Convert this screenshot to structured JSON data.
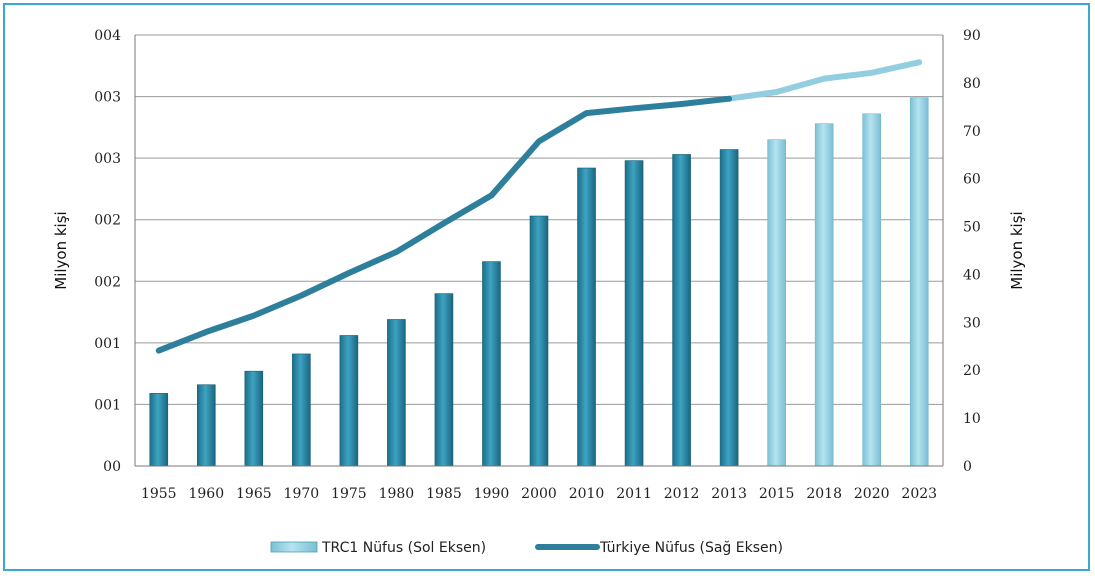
{
  "chart_data": {
    "type": "bar",
    "categories": [
      "1955",
      "1960",
      "1965",
      "1970",
      "1975",
      "1980",
      "1985",
      "1990",
      "2000",
      "2010",
      "2011",
      "2012",
      "2013",
      "2015",
      "2018",
      "2020",
      "2023"
    ],
    "left_axis": {
      "label": "Milyon kişi",
      "ticks": [
        "00",
        "001",
        "001",
        "002",
        "002",
        "003",
        "003",
        "004"
      ],
      "ylim": [
        0,
        3.5
      ]
    },
    "right_axis": {
      "label": "Milyon kişi",
      "ticks": [
        "0",
        "10",
        "20",
        "30",
        "40",
        "50",
        "60",
        "70",
        "80",
        "90"
      ],
      "ylim": [
        0,
        90
      ]
    },
    "series": [
      {
        "name": "TRC1 Nüfus (Sol Eksen)",
        "kind": "bar",
        "axis": "left",
        "values": [
          0.59,
          0.66,
          0.77,
          0.91,
          1.06,
          1.19,
          1.4,
          1.66,
          2.03,
          2.42,
          2.48,
          2.53,
          2.57,
          2.65,
          2.78,
          2.86,
          2.99
        ],
        "projected_from_index": 13
      },
      {
        "name": "Türkiye  Nüfus (Sağ Eksen)",
        "kind": "line",
        "axis": "right",
        "values": [
          24.1,
          28.0,
          31.4,
          35.6,
          40.3,
          44.7,
          50.7,
          56.5,
          67.8,
          73.7,
          74.7,
          75.6,
          76.7,
          78.1,
          80.9,
          82.1,
          84.3
        ],
        "projected_from_index": 12
      }
    ],
    "colors": {
      "bar_actual": "#2a88a6",
      "bar_projected": "#8ccfe0",
      "line_actual": "#2d7f9c",
      "line_projected": "#93cee0",
      "grid": "#9a9a9a"
    },
    "grid": true,
    "legend_position": "bottom"
  }
}
